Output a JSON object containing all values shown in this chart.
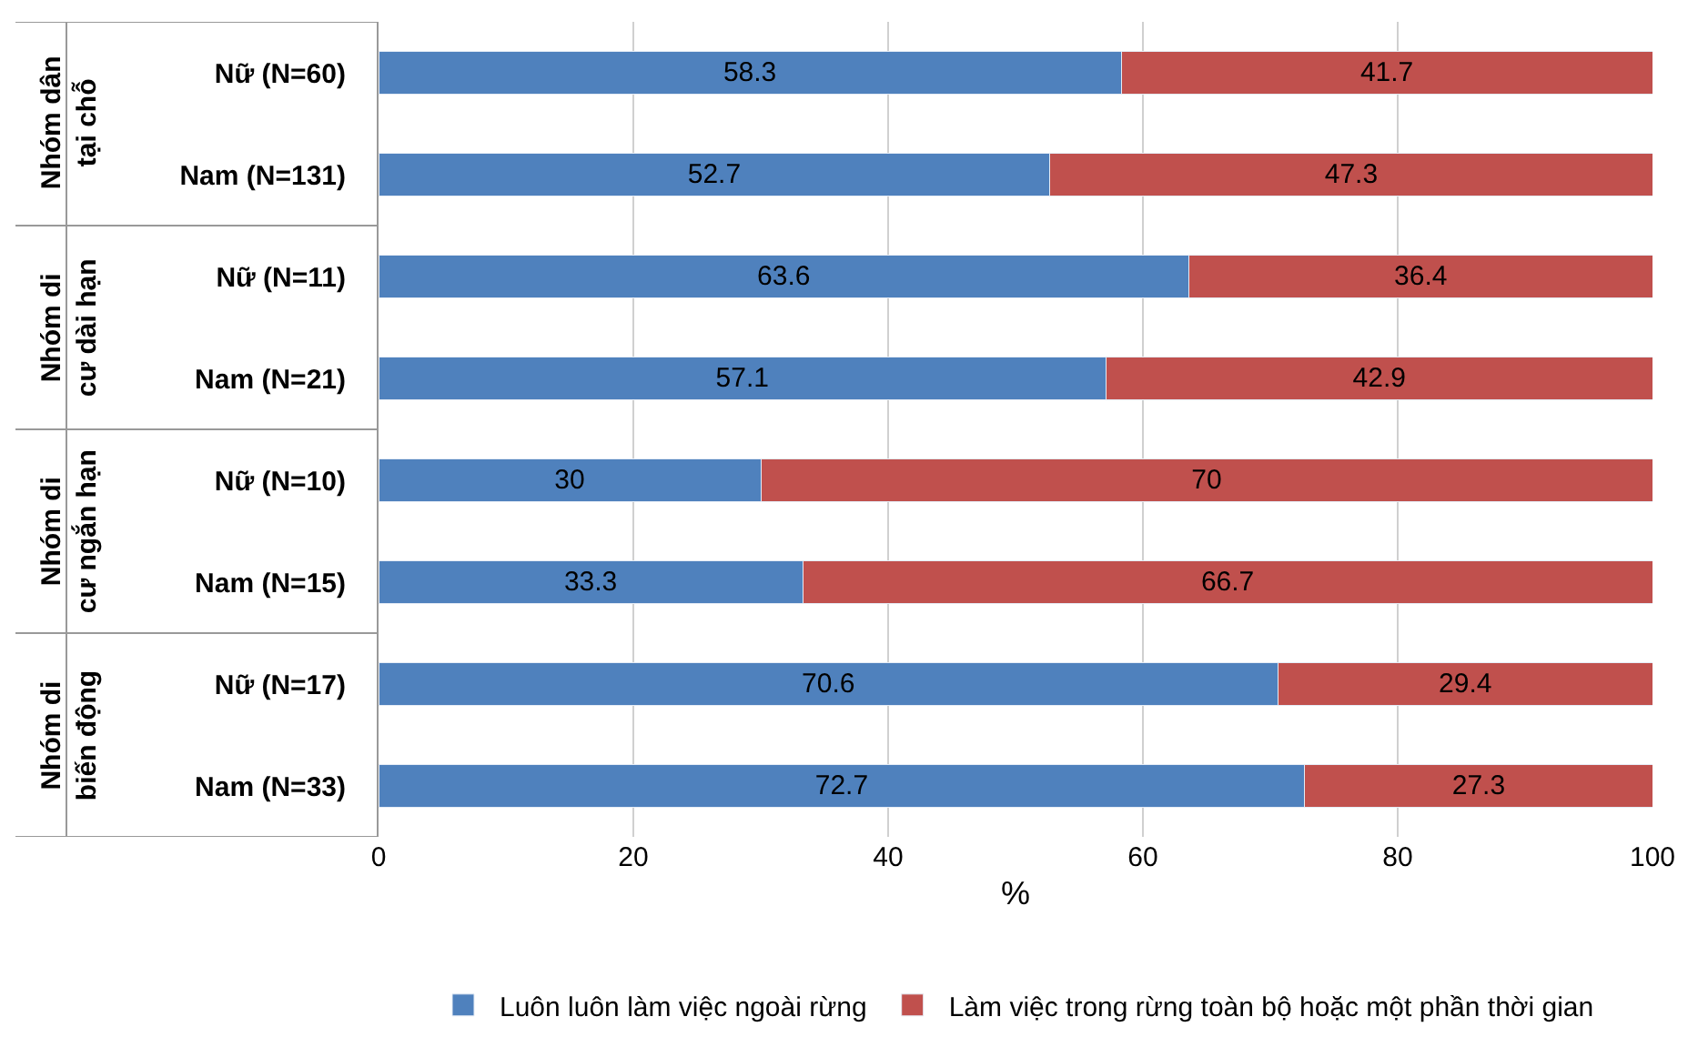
{
  "chart_data": {
    "type": "bar",
    "orientation": "horizontal",
    "stacked": true,
    "xlabel": "%",
    "categories": [
      "Nữ (N=60)",
      "Nam (N=131)",
      "Nữ (N=11)",
      "Nam (N=21)",
      "Nữ (N=10)",
      "Nam (N=15)",
      "Nữ (N=17)",
      "Nam (N=33)"
    ],
    "series": [
      {
        "name": "Luôn luôn làm việc ngoài rừng",
        "color": "#4f81bd",
        "values": [
          58.3,
          52.7,
          63.6,
          57.1,
          30,
          33.3,
          70.6,
          72.7
        ]
      },
      {
        "name": "Làm việc trong rừng toàn bộ hoặc một phần thời gian",
        "color": "#c0504d",
        "values": [
          41.7,
          47.3,
          36.4,
          42.9,
          70,
          66.7,
          29.4,
          27.3
        ]
      }
    ],
    "xlim": [
      0,
      100
    ],
    "xticks": [
      0,
      20,
      40,
      60,
      80,
      100
    ],
    "grid": "x",
    "legend": "bottom",
    "data_labels": true,
    "annotations": [
      "Nhóm dân\ntại chỗ",
      "Nhóm di\ncư dài hạn",
      "Nhóm di\ncư ngắn hạn",
      "Nhóm di\nbiến động"
    ]
  }
}
